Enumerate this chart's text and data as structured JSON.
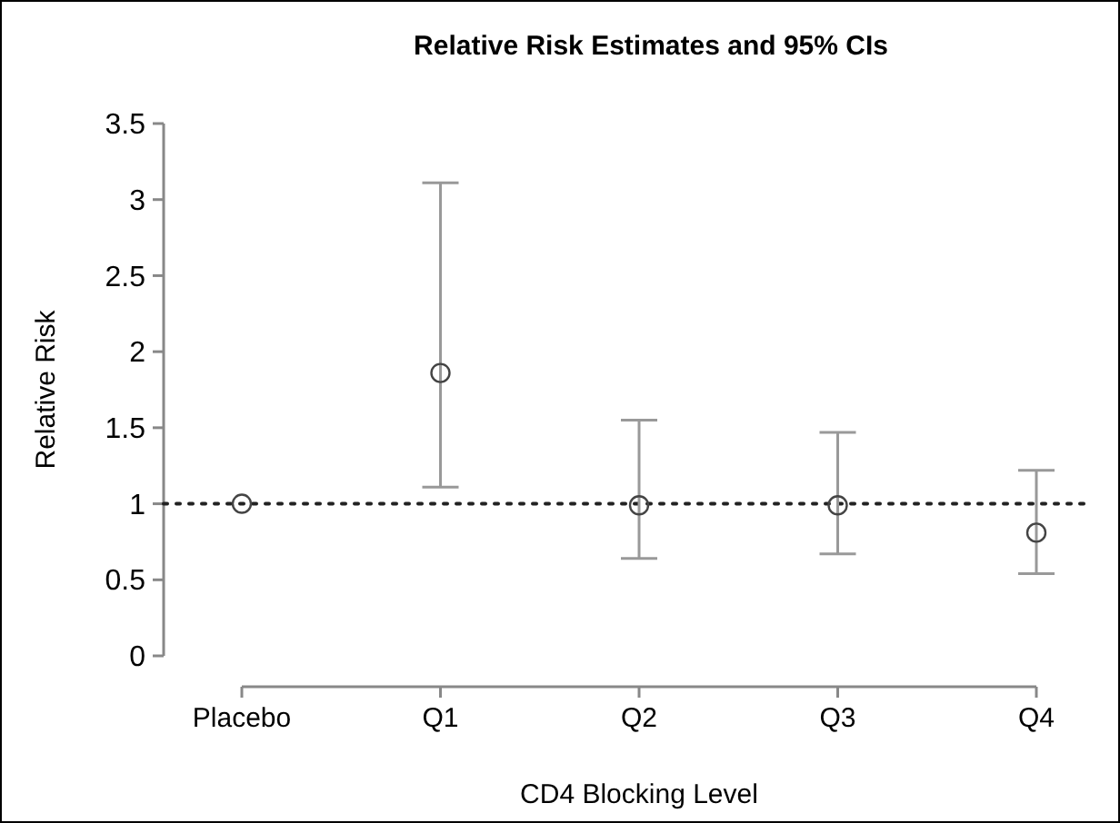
{
  "chart_data": {
    "type": "scatter",
    "title": "Relative Risk Estimates and 95% CIs",
    "xlabel": "CD4 Blocking Level",
    "ylabel": "Relative Risk",
    "categories": [
      "Placebo",
      "Q1",
      "Q2",
      "Q3",
      "Q4"
    ],
    "values": [
      1,
      1.86,
      0.99,
      0.99,
      0.81
    ],
    "errors": [
      null,
      [
        1.11,
        3.11
      ],
      [
        0.64,
        1.55
      ],
      [
        0.67,
        1.47
      ],
      [
        0.54,
        1.22
      ]
    ],
    "color": "#444444",
    "marker": "circle",
    "ylim": [
      0,
      3.5
    ],
    "yticks": [
      0,
      0.5,
      1,
      1.5,
      2,
      2.5,
      3,
      3.5
    ],
    "ref_lines": [
      {
        "axis": "y",
        "value": 1,
        "line_style": "dotted",
        "color": "#222222"
      }
    ]
  }
}
